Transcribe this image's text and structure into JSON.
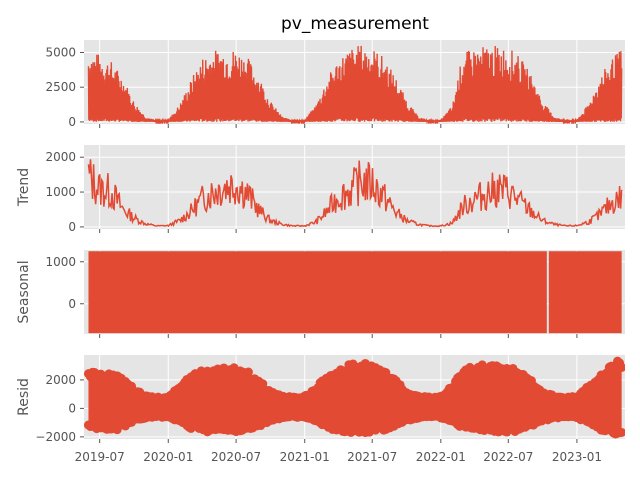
{
  "chart_data": [
    {
      "type": "line",
      "panel": "observed",
      "title": "pv_measurement",
      "ylabel": "",
      "ylim": [
        -150,
        5900
      ],
      "yticks": [
        0,
        2500,
        5000
      ],
      "ytick_labels": [
        "0",
        "2500",
        "5000"
      ],
      "series": [
        {
          "x": [
            "2019-06-01",
            "2019-07-01",
            "2019-08-01",
            "2019-09-01",
            "2019-10-01",
            "2019-11-01",
            "2019-12-01",
            "2020-01-01",
            "2020-02-01",
            "2020-03-01",
            "2020-04-01",
            "2020-05-01",
            "2020-06-01",
            "2020-07-01",
            "2020-08-01",
            "2020-09-01",
            "2020-10-01",
            "2020-11-01",
            "2020-12-01",
            "2021-01-01",
            "2021-02-01",
            "2021-03-01",
            "2021-04-01",
            "2021-05-01",
            "2021-06-01",
            "2021-07-01",
            "2021-08-01",
            "2021-09-01",
            "2021-10-01",
            "2021-11-01",
            "2021-12-01",
            "2022-01-01",
            "2022-02-01",
            "2022-03-01",
            "2022-04-01",
            "2022-05-01",
            "2022-06-01",
            "2022-07-01",
            "2022-08-01",
            "2022-09-01",
            "2022-10-01",
            "2022-11-01",
            "2022-12-01",
            "2023-01-01",
            "2023-02-01",
            "2023-03-01",
            "2023-04-01",
            "2023-05-01"
          ],
          "y": [
            5200,
            4900,
            4400,
            3300,
            1500,
            400,
            100,
            150,
            1300,
            3000,
            4700,
            5200,
            5300,
            5300,
            4700,
            3300,
            1500,
            400,
            100,
            150,
            1300,
            3100,
            4600,
            5300,
            5600,
            5400,
            4700,
            3300,
            1600,
            400,
            100,
            150,
            1200,
            5000,
            5300,
            5500,
            5500,
            5400,
            4700,
            3400,
            1500,
            400,
            100,
            150,
            1300,
            3100,
            4500,
            5300
          ]
        }
      ]
    },
    {
      "type": "line",
      "panel": "trend",
      "ylabel": "Trend",
      "ylim": [
        -60,
        2350
      ],
      "yticks": [
        0,
        1000,
        2000
      ],
      "ytick_labels": [
        "0",
        "1000",
        "2000"
      ],
      "series": [
        {
          "x": [
            "2019-06-01",
            "2019-07-01",
            "2019-08-01",
            "2019-09-01",
            "2019-10-01",
            "2019-11-01",
            "2019-12-01",
            "2020-01-01",
            "2020-02-01",
            "2020-03-01",
            "2020-04-01",
            "2020-05-01",
            "2020-06-01",
            "2020-07-01",
            "2020-08-01",
            "2020-09-01",
            "2020-10-01",
            "2020-11-01",
            "2020-12-01",
            "2021-01-01",
            "2021-02-01",
            "2021-03-01",
            "2021-04-01",
            "2021-05-01",
            "2021-06-01",
            "2021-07-01",
            "2021-08-01",
            "2021-09-01",
            "2021-10-01",
            "2021-11-01",
            "2021-12-01",
            "2022-01-01",
            "2022-02-01",
            "2022-03-01",
            "2022-04-01",
            "2022-05-01",
            "2022-06-01",
            "2022-07-01",
            "2022-08-01",
            "2022-09-01",
            "2022-10-01",
            "2022-11-01",
            "2022-12-01",
            "2023-01-01",
            "2023-02-01",
            "2023-03-01",
            "2023-04-01",
            "2023-05-01"
          ],
          "y": [
            2000,
            1500,
            1400,
            700,
            350,
            120,
            40,
            50,
            250,
            600,
            1100,
            1400,
            1600,
            1700,
            1300,
            650,
            250,
            100,
            40,
            40,
            200,
            600,
            1200,
            1400,
            1800,
            1700,
            1200,
            600,
            250,
            100,
            40,
            40,
            150,
            800,
            1100,
            1300,
            1500,
            1400,
            1000,
            600,
            250,
            100,
            40,
            50,
            200,
            450,
            900,
            1200
          ]
        }
      ]
    },
    {
      "type": "line",
      "panel": "seasonal",
      "ylabel": "Seasonal",
      "ylim": [
        -720,
        1280
      ],
      "yticks": [
        0,
        1000
      ],
      "ytick_labels": [
        "0",
        "1000"
      ],
      "series": [
        {
          "x": [
            "2019-06-01",
            "2023-05-01"
          ],
          "y_band": [
            -700,
            1250
          ],
          "gap_at": "2022-10-15"
        }
      ]
    },
    {
      "type": "scatter",
      "panel": "resid",
      "ylabel": "Resid",
      "ylim": [
        -2150,
        3750
      ],
      "yticks": [
        -2000,
        0,
        2000
      ],
      "ytick_labels": [
        "−2000",
        "0",
        "2000"
      ],
      "series": [
        {
          "x": [
            "2019-06-01",
            "2019-07-01",
            "2019-08-01",
            "2019-09-01",
            "2019-10-01",
            "2019-11-01",
            "2019-12-01",
            "2020-01-01",
            "2020-02-01",
            "2020-03-01",
            "2020-04-01",
            "2020-05-01",
            "2020-06-01",
            "2020-07-01",
            "2020-08-01",
            "2020-09-01",
            "2020-10-01",
            "2020-11-01",
            "2020-12-01",
            "2021-01-01",
            "2021-02-01",
            "2021-03-01",
            "2021-04-01",
            "2021-05-01",
            "2021-06-01",
            "2021-07-01",
            "2021-08-01",
            "2021-09-01",
            "2021-10-01",
            "2021-11-01",
            "2021-12-01",
            "2022-01-01",
            "2022-02-01",
            "2022-03-01",
            "2022-04-01",
            "2022-05-01",
            "2022-06-01",
            "2022-07-01",
            "2022-08-01",
            "2022-09-01",
            "2022-10-01",
            "2022-11-01",
            "2022-12-01",
            "2023-01-01",
            "2023-02-01",
            "2023-03-01",
            "2023-04-01",
            "2023-05-01"
          ],
          "y_upper": [
            2700,
            2600,
            2500,
            2300,
            1500,
            900,
            800,
            900,
            1500,
            2400,
            2700,
            2800,
            2900,
            3000,
            2600,
            2000,
            1200,
            900,
            800,
            900,
            1500,
            2500,
            2900,
            3100,
            3200,
            3100,
            2700,
            2000,
            1200,
            900,
            800,
            900,
            1600,
            2700,
            3000,
            3100,
            3200,
            3100,
            2700,
            2000,
            1200,
            900,
            800,
            900,
            1700,
            2400,
            3000,
            3500
          ],
          "y_lower": [
            -1300,
            -1500,
            -1600,
            -1400,
            -900,
            -700,
            -600,
            -700,
            -900,
            -1500,
            -1600,
            -1700,
            -1700,
            -1700,
            -1600,
            -1300,
            -900,
            -700,
            -600,
            -700,
            -900,
            -1400,
            -1600,
            -1700,
            -1800,
            -1700,
            -1600,
            -1300,
            -900,
            -700,
            -600,
            -700,
            -1000,
            -1400,
            -1600,
            -1700,
            -1700,
            -1700,
            -1600,
            -1300,
            -900,
            -700,
            -600,
            -700,
            -1000,
            -1500,
            -1800,
            -2000
          ]
        }
      ]
    }
  ],
  "x_axis": {
    "tick_dates": [
      "2019-07-01",
      "2020-01-01",
      "2020-07-01",
      "2021-01-01",
      "2021-07-01",
      "2022-01-01",
      "2022-07-01",
      "2023-01-01"
    ],
    "tick_labels": [
      "2019-07",
      "2020-01",
      "2020-07",
      "2021-01",
      "2021-07",
      "2022-01",
      "2022-07",
      "2023-01"
    ],
    "xlim": [
      "2019-05-20",
      "2023-05-10"
    ]
  },
  "style": {
    "plot_bg": "#e5e5e5",
    "grid_color": "#ffffff",
    "line_color": "#e24a33",
    "grid": true
  }
}
